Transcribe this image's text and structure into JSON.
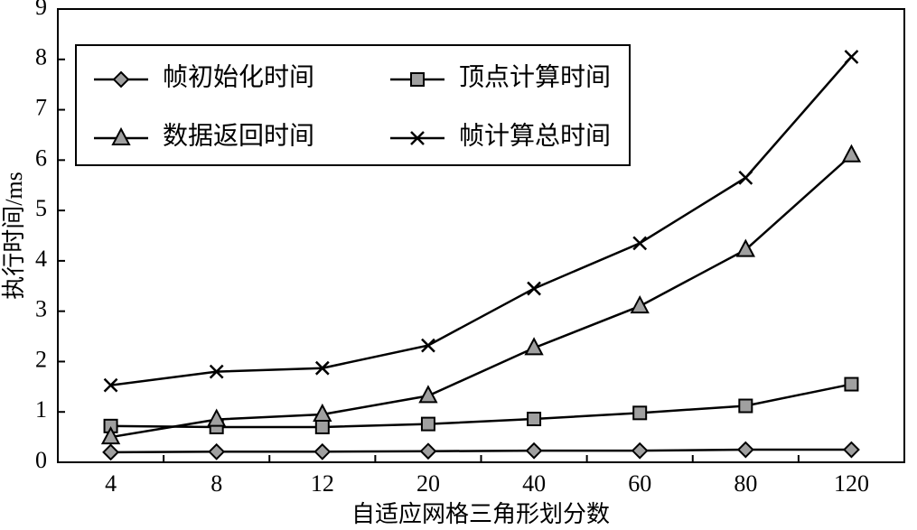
{
  "chart_data": {
    "type": "line",
    "x_label": "自适应网格三角形划分数",
    "y_label": "执行时间/ms",
    "categories": [
      "4",
      "8",
      "12",
      "20",
      "40",
      "60",
      "80",
      "120"
    ],
    "series": [
      {
        "name": "帧初始化时间",
        "color": "#000000",
        "marker": "diamond",
        "values": [
          0.2,
          0.21,
          0.21,
          0.22,
          0.23,
          0.23,
          0.25,
          0.25
        ]
      },
      {
        "name": "顶点计算时间",
        "color": "#000000",
        "marker": "square",
        "values": [
          0.72,
          0.7,
          0.7,
          0.76,
          0.86,
          0.98,
          1.12,
          1.55
        ]
      },
      {
        "name": "数据返回时间",
        "color": "#000000",
        "marker": "triangle",
        "values": [
          0.5,
          0.85,
          0.95,
          1.32,
          2.27,
          3.1,
          4.22,
          6.1
        ]
      },
      {
        "name": "帧计算总时间",
        "color": "#000000",
        "marker": "x",
        "values": [
          1.53,
          1.8,
          1.87,
          2.32,
          3.45,
          4.35,
          5.65,
          8.05
        ]
      }
    ],
    "marker_fill": "#a0a0a0",
    "ylim": [
      0,
      9
    ],
    "yticks": [
      0,
      1,
      2,
      3,
      4,
      5,
      6,
      7,
      8,
      9
    ],
    "grid": false
  }
}
